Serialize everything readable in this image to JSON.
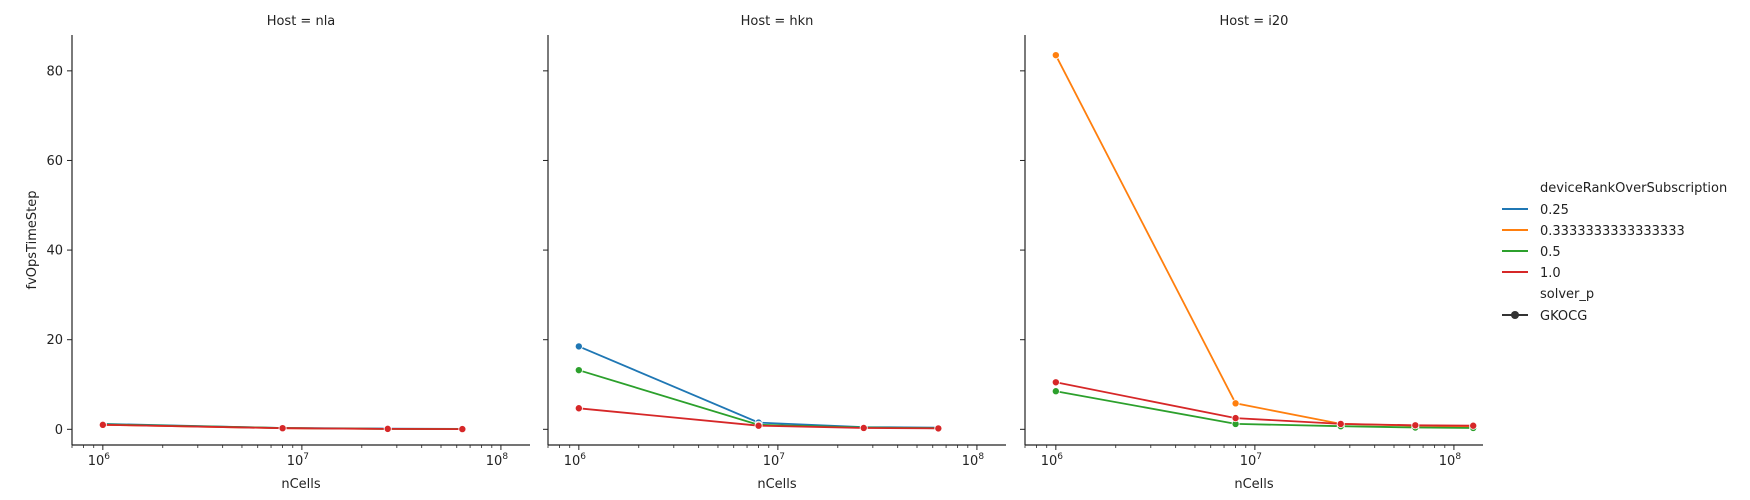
{
  "chart_data": {
    "type": "line",
    "x_scale": "log",
    "xlim": [
      700000,
      140000000
    ],
    "ylim": [
      -3.5,
      88
    ],
    "xlabel": "nCells",
    "ylabel": "fvOpsTimeStep",
    "x_ticks": [
      {
        "value": 1000000,
        "base": "10",
        "exp": "6"
      },
      {
        "value": 10000000,
        "base": "10",
        "exp": "7"
      },
      {
        "value": 100000000,
        "base": "10",
        "exp": "8"
      }
    ],
    "y_ticks": [
      {
        "value": 0,
        "label": "0"
      },
      {
        "value": 20,
        "label": "20"
      },
      {
        "value": 40,
        "label": "40"
      },
      {
        "value": 60,
        "label": "60"
      },
      {
        "value": 80,
        "label": "80"
      }
    ],
    "panels": [
      {
        "title": "Host = nla",
        "series": [
          {
            "name": "0.25",
            "color": "#1f77b4",
            "x": [
              1000000,
              8000000,
              27000000,
              64000000
            ],
            "y": [
              1.2,
              0.3,
              0.15,
              0.1
            ]
          },
          {
            "name": "0.3333333333333333",
            "color": "#ff7f0e",
            "x": [
              1000000,
              8000000,
              27000000,
              64000000
            ],
            "y": [
              1.0,
              0.25,
              0.1,
              0.05
            ]
          },
          {
            "name": "0.5",
            "color": "#2ca02c",
            "x": [
              1000000,
              8000000,
              27000000,
              64000000
            ],
            "y": [
              1.1,
              0.3,
              0.1,
              0.05
            ]
          },
          {
            "name": "1.0",
            "color": "#d62728",
            "x": [
              1000000,
              8000000,
              27000000,
              64000000
            ],
            "y": [
              1.0,
              0.25,
              0.1,
              0.05
            ]
          }
        ]
      },
      {
        "title": "Host = hkn",
        "series": [
          {
            "name": "0.25",
            "color": "#1f77b4",
            "x": [
              1000000,
              8000000,
              27000000,
              64000000
            ],
            "y": [
              18.5,
              1.5,
              0.5,
              0.35
            ]
          },
          {
            "name": "0.5",
            "color": "#2ca02c",
            "x": [
              1000000,
              8000000,
              27000000,
              64000000
            ],
            "y": [
              13.2,
              1.0,
              0.4,
              0.25
            ]
          },
          {
            "name": "1.0",
            "color": "#d62728",
            "x": [
              1000000,
              8000000,
              27000000,
              64000000
            ],
            "y": [
              4.7,
              0.8,
              0.3,
              0.2
            ]
          }
        ]
      },
      {
        "title": "Host = i20",
        "series": [
          {
            "name": "0.3333333333333333",
            "color": "#ff7f0e",
            "x": [
              1000000,
              8000000,
              27000000,
              64000000,
              125000000
            ],
            "y": [
              83.5,
              5.8,
              1.2,
              0.8,
              0.6
            ]
          },
          {
            "name": "0.5",
            "color": "#2ca02c",
            "x": [
              1000000,
              8000000,
              27000000,
              64000000,
              125000000
            ],
            "y": [
              8.5,
              1.2,
              0.7,
              0.4,
              0.3
            ]
          },
          {
            "name": "1.0",
            "color": "#d62728",
            "x": [
              1000000,
              8000000,
              27000000,
              64000000,
              125000000
            ],
            "y": [
              10.5,
              2.5,
              1.2,
              0.9,
              0.8
            ]
          }
        ]
      }
    ],
    "legend": {
      "placement": "right",
      "hue_title": "deviceRankOverSubscription",
      "hue_entries": [
        {
          "label": "0.25",
          "color": "#1f77b4"
        },
        {
          "label": "0.3333333333333333",
          "color": "#ff7f0e"
        },
        {
          "label": "0.5",
          "color": "#2ca02c"
        },
        {
          "label": "1.0",
          "color": "#d62728"
        }
      ],
      "style_title": "solver_p",
      "style_entries": [
        {
          "label": "GKOCG",
          "color": "#333333",
          "marker": "circle"
        }
      ]
    }
  }
}
